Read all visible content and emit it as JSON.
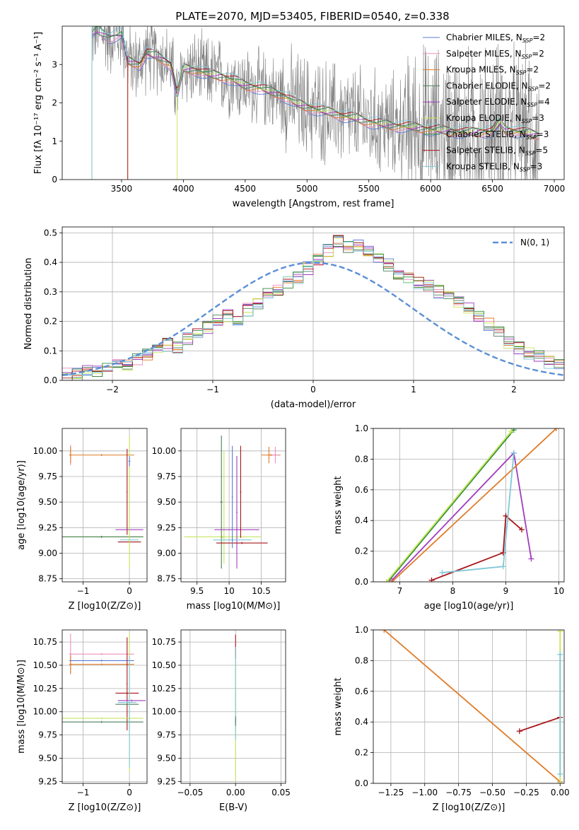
{
  "title": "PLATE=2070, MJD=53405, FIBERID=0540, z=0.338",
  "colors": {
    "Chabrier MILES": "#5b7bd5",
    "Salpeter MILES": "#ee8fbf",
    "Kroupa MILES": "#e07b28",
    "Chabrier ELODIE": "#4b7f5c",
    "Salpeter ELODIE": "#a03dbf",
    "Kroupa ELODIE": "#c5e65a",
    "Chabrier STELIB": "#2e8b3a",
    "Salpeter STELIB": "#a8151a",
    "Kroupa STELIB": "#7ec8d6",
    "data": "#7f7f7f",
    "normal": "#5b8fd6"
  },
  "chart_data": [
    {
      "id": "spectrum",
      "type": "line",
      "xlabel": "wavelength [Angstrom, rest frame]",
      "ylabel": "Flux [fλ 10⁻¹⁷ erg cm⁻² s⁻¹ A⁻¹]",
      "xlim": [
        3020,
        7080
      ],
      "ylim": [
        0,
        4.0
      ],
      "xticks": [
        3500,
        4000,
        4500,
        5000,
        5500,
        6000,
        6500,
        7000
      ],
      "yticks": [
        0,
        1,
        2,
        3
      ],
      "legend_location": "top-right",
      "legend": [
        {
          "label": "Chabrier MILES, N",
          "sub": "SSP",
          "suffix": "=2"
        },
        {
          "label": "Salpeter MILES, N",
          "sub": "SSP",
          "suffix": "=2"
        },
        {
          "label": "Kroupa MILES, N",
          "sub": "SSP",
          "suffix": "=2"
        },
        {
          "label": "Chabrier ELODIE, N",
          "sub": "SSP",
          "suffix": "=2"
        },
        {
          "label": "Salpeter ELODIE, N",
          "sub": "SSP",
          "suffix": "=4"
        },
        {
          "label": "Kroupa ELODIE, N",
          "sub": "SSP",
          "suffix": "=3"
        },
        {
          "label": "Chabrier STELIB, N",
          "sub": "SSP",
          "suffix": "=3"
        },
        {
          "label": "Salpeter STELIB, N",
          "sub": "SSP",
          "suffix": "=5"
        },
        {
          "label": "Kroupa STELIB, N",
          "sub": "SSP",
          "suffix": "=3"
        }
      ],
      "model_continuum": {
        "x": [
          3260,
          3300,
          3400,
          3500,
          3550,
          3650,
          3700,
          3800,
          3900,
          3950,
          4000,
          4100,
          4200,
          4300,
          4400,
          4500,
          4600,
          4700,
          4800,
          4860,
          4900,
          5000,
          5100,
          5200,
          5300,
          5400,
          5500,
          5600,
          5700,
          5800,
          5900,
          6000,
          6100,
          6200,
          6300,
          6400,
          6500,
          6560,
          6600,
          6700,
          6800,
          6880
        ],
        "y": [
          3.8,
          3.9,
          3.7,
          3.8,
          3.1,
          3.0,
          3.3,
          3.2,
          3.0,
          2.2,
          2.9,
          2.85,
          2.75,
          2.7,
          2.6,
          2.45,
          2.4,
          2.3,
          2.2,
          2.1,
          2.0,
          1.9,
          1.8,
          1.75,
          1.65,
          1.6,
          1.5,
          1.45,
          1.4,
          1.38,
          1.35,
          1.3,
          1.28,
          1.25,
          1.22,
          1.25,
          1.25,
          1.5,
          1.3,
          1.25,
          1.2,
          1.15
        ]
      }
    },
    {
      "id": "residuals",
      "type": "line",
      "xlabel": "(data-model)/error",
      "ylabel": "Normed distribution",
      "xlim": [
        -2.5,
        2.5
      ],
      "ylim": [
        0,
        0.52
      ],
      "xticks": [
        -2,
        -1,
        0,
        1,
        2
      ],
      "yticks": [
        0.0,
        0.1,
        0.2,
        0.3,
        0.4,
        0.5
      ],
      "legend_location": "top-right",
      "normal_label": "N(0, 1)",
      "hist": {
        "x_start": -2.5,
        "bin_width": 0.1,
        "values": [
          0.02,
          0.02,
          0.03,
          0.03,
          0.05,
          0.06,
          0.05,
          0.07,
          0.09,
          0.1,
          0.12,
          0.11,
          0.14,
          0.16,
          0.18,
          0.2,
          0.22,
          0.21,
          0.24,
          0.26,
          0.29,
          0.31,
          0.33,
          0.35,
          0.38,
          0.41,
          0.44,
          0.47,
          0.45,
          0.46,
          0.44,
          0.41,
          0.39,
          0.36,
          0.35,
          0.33,
          0.32,
          0.3,
          0.28,
          0.27,
          0.24,
          0.22,
          0.19,
          0.16,
          0.13,
          0.11,
          0.09,
          0.08,
          0.06,
          0.05
        ]
      }
    },
    {
      "id": "age_vs_Z",
      "type": "scatter",
      "xlabel": "Z [log10(Z/Z⊙)]",
      "ylabel": "age  [log10(age/yr)]",
      "xlim": [
        -1.45,
        0.38
      ],
      "ylim": [
        8.72,
        10.22
      ],
      "xticks": [
        -1,
        0
      ],
      "yticks": [
        8.75,
        9.0,
        9.25,
        9.5,
        9.75,
        10.0
      ]
    },
    {
      "id": "age_vs_mass",
      "type": "scatter",
      "xlabel": "mass [log10(M/M⊙)]",
      "xlim": [
        9.25,
        10.88
      ],
      "ylim": [
        8.72,
        10.22
      ],
      "xticks": [
        9.5,
        10.0,
        10.5
      ],
      "yticks": [
        8.75,
        9.0,
        9.25,
        9.5,
        9.75,
        10.0
      ]
    },
    {
      "id": "weight_vs_age",
      "type": "line",
      "xlabel": "age  [log10(age/yr)]",
      "ylabel": "mass weight",
      "xlim": [
        6.5,
        10.1
      ],
      "ylim": [
        0,
        1.0
      ],
      "xticks": [
        7,
        8,
        9,
        10
      ],
      "yticks": [
        0.0,
        0.2,
        0.4,
        0.6,
        0.8,
        1.0
      ],
      "series": [
        {
          "key": "Chabrier STELIB",
          "x": [
            6.8,
            9.15
          ],
          "y": [
            0.01,
            0.99
          ]
        },
        {
          "key": "Kroupa ELODIE",
          "x": [
            6.75,
            9.1
          ],
          "y": [
            0.0,
            0.98
          ]
        },
        {
          "key": "Salpeter ELODIE",
          "x": [
            6.85,
            9.15,
            9.48
          ],
          "y": [
            0.01,
            0.84,
            0.15
          ]
        },
        {
          "key": "Kroupa MILES",
          "x": [
            6.85,
            9.95
          ],
          "y": [
            0.0,
            1.0
          ]
        },
        {
          "key": "Salpeter STELIB",
          "x": [
            7.6,
            8.95,
            9.0,
            9.3
          ],
          "y": [
            0.01,
            0.19,
            0.43,
            0.34
          ]
        },
        {
          "key": "Kroupa STELIB",
          "x": [
            7.8,
            8.95,
            9.15
          ],
          "y": [
            0.06,
            0.1,
            0.84
          ]
        }
      ]
    },
    {
      "id": "mass_vs_Z",
      "type": "scatter",
      "xlabel": "Z [log10(Z/Z⊙)]",
      "ylabel": "mass [log10(M/M⊙)]",
      "xlim": [
        -1.45,
        0.38
      ],
      "ylim": [
        9.23,
        10.88
      ],
      "xticks": [
        -1,
        0
      ],
      "yticks": [
        9.25,
        9.5,
        9.75,
        10.0,
        10.25,
        10.5,
        10.75
      ]
    },
    {
      "id": "mass_vs_ebv",
      "type": "scatter",
      "xlabel": "E(B-V)",
      "xlim": [
        -0.06,
        0.055
      ],
      "ylim": [
        9.23,
        10.88
      ],
      "xticks": [
        -0.05,
        0.0,
        0.05
      ],
      "yticks": [
        9.25,
        9.5,
        9.75,
        10.0,
        10.25,
        10.5,
        10.75
      ]
    },
    {
      "id": "weight_vs_Z",
      "type": "line",
      "xlabel": "Z [log10(Z/Z⊙)]",
      "ylabel": "mass weight",
      "xlim": [
        -1.38,
        0.03
      ],
      "ylim": [
        0,
        1.0
      ],
      "xticks": [
        -1.25,
        -1.0,
        -0.75,
        -0.5,
        -0.25,
        0.0
      ],
      "yticks": [
        0.0,
        0.2,
        0.4,
        0.6,
        0.8,
        1.0
      ],
      "series": [
        {
          "key": "Kroupa MILES",
          "x": [
            -1.3,
            0.0
          ],
          "y": [
            1.0,
            0.01
          ]
        },
        {
          "key": "Salpeter STELIB",
          "x": [
            -0.3,
            0.0
          ],
          "y": [
            0.34,
            0.43
          ]
        },
        {
          "key": "Kroupa ELODIE",
          "x": [
            0.0,
            0.0
          ],
          "y": [
            0.0,
            0.99
          ]
        },
        {
          "key": "Kroupa STELIB",
          "x": [
            0.0,
            0.0
          ],
          "y": [
            0.06,
            0.84
          ]
        }
      ]
    }
  ]
}
